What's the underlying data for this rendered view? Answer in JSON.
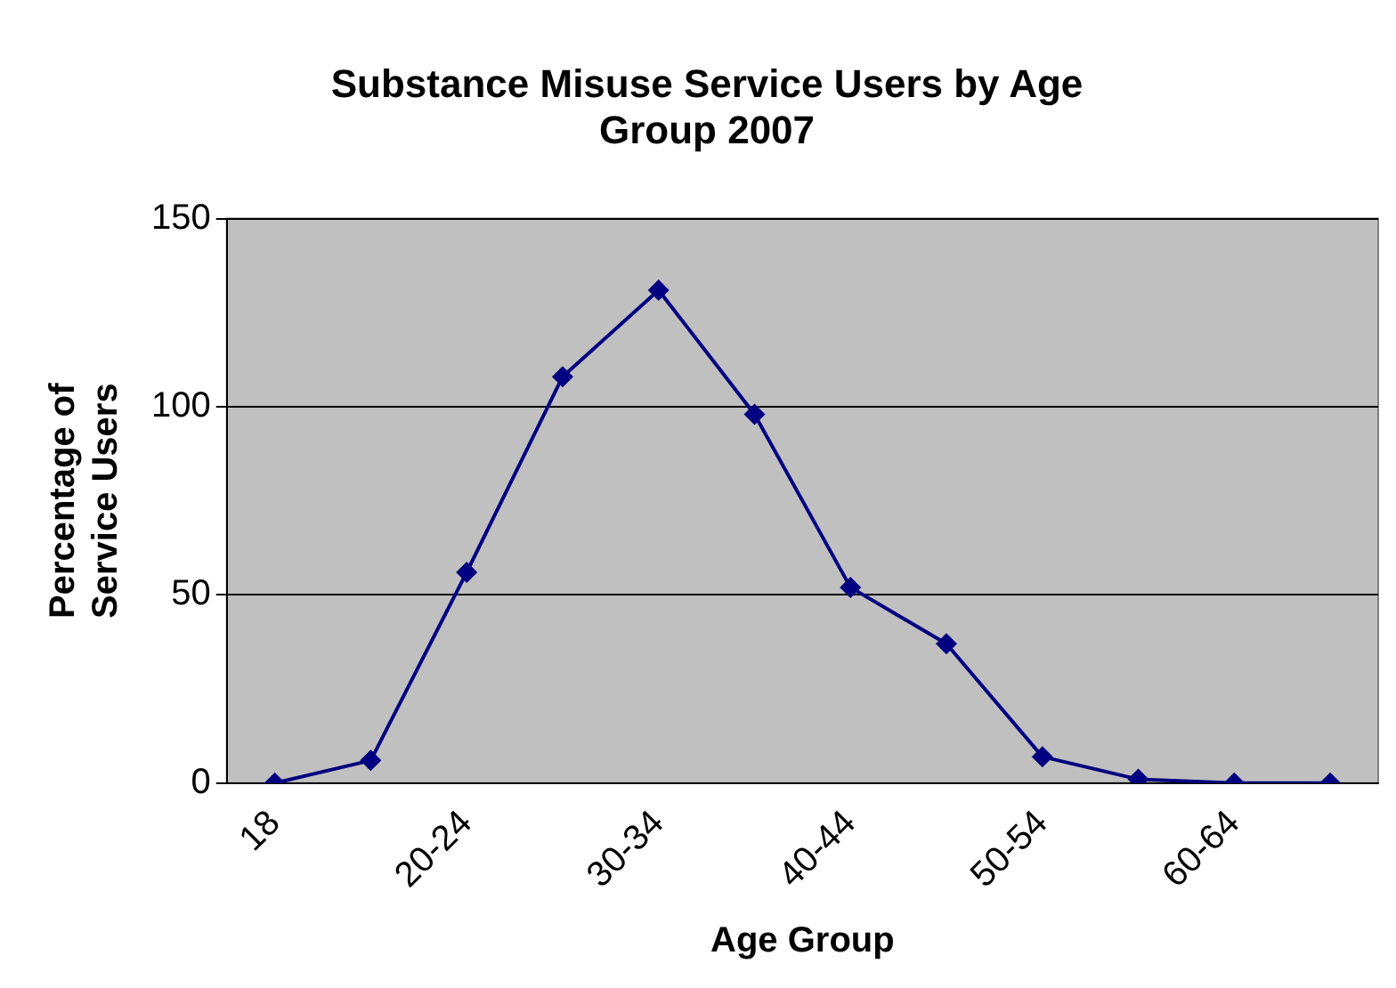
{
  "chart_data": {
    "type": "line",
    "title": [
      "Substance Misuse Service Users by Age",
      "Group 2007"
    ],
    "xlabel": "Age Group",
    "ylabel": [
      "Percentage of",
      "Service Users"
    ],
    "categories": [
      "18",
      null,
      "20-24",
      null,
      "30-34",
      null,
      "40-44",
      null,
      "50-54",
      null,
      "60-64",
      null
    ],
    "series": [
      {
        "color": "#000080",
        "values": [
          0,
          6,
          56,
          108,
          131,
          98,
          52,
          37,
          7,
          1,
          0,
          0
        ]
      }
    ],
    "ylim": [
      0,
      150
    ],
    "yticks": [
      0,
      50,
      100,
      150
    ],
    "grid": "y",
    "legend": false,
    "marker": "diamond",
    "line_style": "solid"
  }
}
